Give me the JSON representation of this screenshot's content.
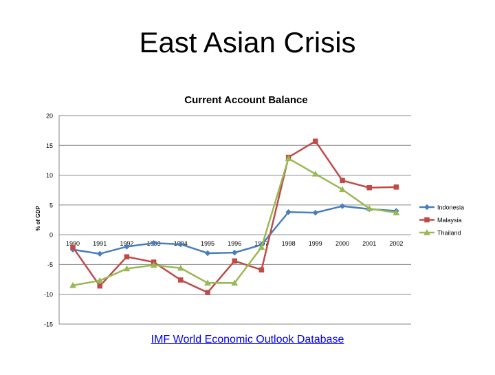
{
  "slide": {
    "title": "East Asian Crisis",
    "source_link": "IMF World Economic Outlook Database"
  },
  "chart_data": {
    "type": "line",
    "title": "Current Account Balance",
    "xlabel": "",
    "ylabel": "% of GDP",
    "ylim": [
      -15,
      20
    ],
    "yticks": [
      -15,
      -10,
      -5,
      0,
      5,
      10,
      15,
      20
    ],
    "grid": true,
    "legend_position": "right",
    "categories": [
      "1990",
      "1991",
      "1992",
      "1993",
      "1994",
      "1995",
      "1996",
      "1997",
      "1998",
      "1999",
      "2000",
      "2001",
      "2002"
    ],
    "series": [
      {
        "name": "Indonesia",
        "color": "#4a7ebb",
        "marker": "diamond",
        "values": [
          -2.5,
          -3.2,
          -2.0,
          -1.4,
          -1.6,
          -3.1,
          -3.0,
          -1.7,
          3.8,
          3.7,
          4.8,
          4.3,
          4.0
        ]
      },
      {
        "name": "Malaysia",
        "color": "#be4b48",
        "marker": "square",
        "values": [
          -2.1,
          -8.6,
          -3.7,
          -4.6,
          -7.6,
          -9.7,
          -4.4,
          -5.9,
          13.0,
          15.7,
          9.1,
          7.9,
          8.0
        ]
      },
      {
        "name": "Thailand",
        "color": "#98b954",
        "marker": "triangle",
        "values": [
          -8.5,
          -7.7,
          -5.7,
          -5.1,
          -5.6,
          -8.1,
          -8.1,
          -2.1,
          12.8,
          10.2,
          7.6,
          4.4,
          3.7
        ]
      }
    ]
  }
}
